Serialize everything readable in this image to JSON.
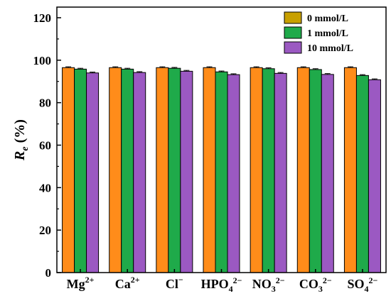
{
  "chart_data": {
    "type": "bar",
    "ylabel_main": "R",
    "ylabel_sub": "e",
    "ylabel_suffix": " (%)",
    "xlabel": "",
    "ylim": [
      0,
      125
    ],
    "yticks": [
      0,
      20,
      40,
      60,
      80,
      100,
      120
    ],
    "grid": false,
    "legend_position": "top-right",
    "categories": [
      {
        "base": "Mg",
        "sub": "",
        "sup": "2+"
      },
      {
        "base": "Ca",
        "sub": "",
        "sup": "2+"
      },
      {
        "base": "Cl",
        "sub": "",
        "sup": "−"
      },
      {
        "base": "HPO",
        "sub": "4",
        "sup": "2−"
      },
      {
        "base": "NO",
        "sub": "3",
        "sup": "2−"
      },
      {
        "base": "CO",
        "sub": "3",
        "sup": "2−"
      },
      {
        "base": "SO",
        "sub": "4",
        "sup": "2−"
      }
    ],
    "series": [
      {
        "name": "0 mmol/L",
        "color": "#ff8c1a",
        "values": [
          96.5,
          96.5,
          96.5,
          96.5,
          96.5,
          96.5,
          96.5
        ]
      },
      {
        "name": "1 mmol/L",
        "color": "#1faa4a",
        "values": [
          95.8,
          95.8,
          96.2,
          94.5,
          96.0,
          95.6,
          92.8
        ]
      },
      {
        "name": "10 mmol/L",
        "color": "#9b59c2",
        "values": [
          94.0,
          94.2,
          94.8,
          93.2,
          93.8,
          93.3,
          90.8
        ]
      }
    ],
    "legend_swatch_colors": [
      "#c8a000",
      "#1faa4a",
      "#9b59c2"
    ]
  }
}
